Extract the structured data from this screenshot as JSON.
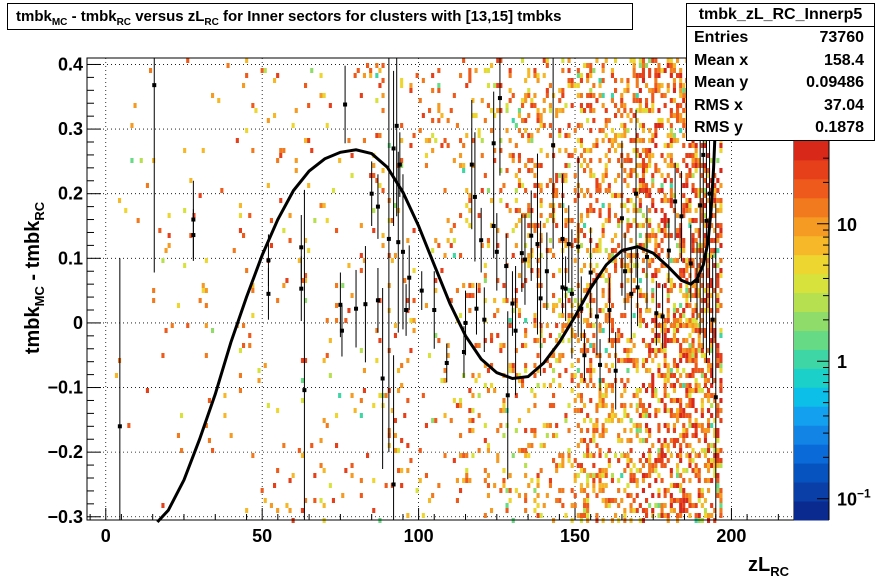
{
  "title": {
    "main": "tmbk",
    "mc_sub": "MC",
    "mid": " - tmbk",
    "rc_sub": "RC",
    "mid2": " versus zL",
    "rc_sub2": "RC",
    "tail": " for Inner sectors for clusters with [13,15] tmbks"
  },
  "stats": {
    "name": "tmbk_zL_RC_Innerp5",
    "rows": [
      {
        "label": "Entries",
        "value": "73760"
      },
      {
        "label": "Mean x",
        "value": "158.4"
      },
      {
        "label": "Mean y",
        "value": "0.09486"
      },
      {
        "label": "RMS x",
        "value": "37.04"
      },
      {
        "label": "RMS y",
        "value": "0.1878"
      }
    ]
  },
  "chart_data": {
    "type": "heatmap",
    "xlabel": {
      "base": "zL",
      "sub": "RC"
    },
    "ylabel": {
      "base": "tmbk",
      "sub1": "MC",
      "mid": " - tmbk",
      "sub2": "RC"
    },
    "xlim": [
      -6,
      220
    ],
    "ylim": [
      -0.305,
      0.41
    ],
    "x_ticks": [
      0,
      50,
      100,
      150,
      200
    ],
    "x_tick_labels": [
      "0",
      "50",
      "100",
      "150",
      "200"
    ],
    "y_ticks": [
      -0.3,
      -0.2,
      -0.1,
      0,
      0.1,
      0.2,
      0.3,
      0.4
    ],
    "y_tick_labels": [
      "−0.3",
      "−0.2",
      "−0.1",
      "0",
      "0.1",
      "0.2",
      "0.3",
      "0.4"
    ],
    "grid": true,
    "z_scale": "log",
    "z_range": [
      0.07,
      40
    ],
    "z_ticks": [
      {
        "value": 10,
        "label": "10",
        "exp": ""
      },
      {
        "value": 1,
        "label": "1",
        "exp": ""
      },
      {
        "value": 0.1,
        "label": "10",
        "exp": "−1"
      }
    ],
    "palette": [
      "#0b2a8f",
      "#0a3fa8",
      "#0653c0",
      "#0a6ad8",
      "#1184e6",
      "#12a0ef",
      "#0bbfe8",
      "#1ad0c8",
      "#3dd6a4",
      "#66da84",
      "#8fdc6a",
      "#b7e050",
      "#d8e23c",
      "#eed630",
      "#f6b828",
      "#f59a22",
      "#f27a1e",
      "#ee5a1c",
      "#e6401a",
      "#d8281a"
    ],
    "profile_points": [
      {
        "x": 4.5,
        "y": -0.16,
        "err": 0.26
      },
      {
        "x": 15.5,
        "y": 0.368,
        "err": 0.29
      },
      {
        "x": 28,
        "y": 0.16,
        "err": 0.06
      },
      {
        "x": 28,
        "y": 0.136,
        "err": 0.04
      },
      {
        "x": 52,
        "y": 0.097,
        "err": 0.04
      },
      {
        "x": 52,
        "y": 0.045,
        "err": 0.04
      },
      {
        "x": 62.5,
        "y": 0.117,
        "err": 0.05
      },
      {
        "x": 62.5,
        "y": 0.053,
        "err": 0.05
      },
      {
        "x": 63.5,
        "y": -0.104,
        "err": 0.31
      },
      {
        "x": 75,
        "y": 0.028,
        "err": 0.05
      },
      {
        "x": 75.5,
        "y": -0.012,
        "err": 0.04
      },
      {
        "x": 76.5,
        "y": 0.338,
        "err": 0.06
      },
      {
        "x": 80,
        "y": 0.022,
        "err": 0.06
      },
      {
        "x": 83,
        "y": 0.029,
        "err": 0.09
      },
      {
        "x": 85,
        "y": 0.2,
        "err": 0.05
      },
      {
        "x": 87,
        "y": 0.18,
        "err": 0.05
      },
      {
        "x": 87,
        "y": 0.035,
        "err": 0.05
      },
      {
        "x": 88.5,
        "y": -0.086,
        "err": 0.14
      },
      {
        "x": 90.5,
        "y": 0.13,
        "err": 0.33
      },
      {
        "x": 92,
        "y": 0.27,
        "err": 0.12
      },
      {
        "x": 92,
        "y": -0.25,
        "err": 0.2
      },
      {
        "x": 93,
        "y": 0.305,
        "err": 0.14
      },
      {
        "x": 93.5,
        "y": 0.125,
        "err": 0.14
      },
      {
        "x": 94,
        "y": 0.245,
        "err": 0.05
      },
      {
        "x": 95,
        "y": 0.11,
        "err": 0.12
      },
      {
        "x": 96,
        "y": 0.02,
        "err": 0.04
      },
      {
        "x": 97,
        "y": 0.07,
        "err": 0.05
      },
      {
        "x": 101,
        "y": 0.05,
        "err": 0.03
      },
      {
        "x": 105,
        "y": 0.02,
        "err": 0.06
      },
      {
        "x": 109,
        "y": -0.062,
        "err": 0.03
      },
      {
        "x": 114.5,
        "y": -0.045,
        "err": 0.04
      },
      {
        "x": 115,
        "y": 0.0,
        "err": 0.05
      },
      {
        "x": 117,
        "y": 0.245,
        "err": 0.1
      },
      {
        "x": 118,
        "y": 0.195,
        "err": 0.1
      },
      {
        "x": 118.5,
        "y": 0.022,
        "err": 0.04
      },
      {
        "x": 120,
        "y": 0.128,
        "err": 0.05
      },
      {
        "x": 121,
        "y": 0.005,
        "err": 0.05
      },
      {
        "x": 124,
        "y": 0.278,
        "err": 0.08
      },
      {
        "x": 124,
        "y": 0.15,
        "err": 0.05
      },
      {
        "x": 125,
        "y": 0.11,
        "err": 0.06
      },
      {
        "x": 126,
        "y": 0.348,
        "err": 0.12
      },
      {
        "x": 128,
        "y": 0.088,
        "err": 0.05
      },
      {
        "x": 128.5,
        "y": -0.112,
        "err": 0.13
      },
      {
        "x": 130,
        "y": 0.03,
        "err": 0.05
      },
      {
        "x": 131,
        "y": -0.012,
        "err": 0.1
      },
      {
        "x": 133,
        "y": 0.108,
        "err": 0.06
      },
      {
        "x": 134,
        "y": 0.098,
        "err": 0.07
      },
      {
        "x": 136,
        "y": 0.135,
        "err": 0.07
      },
      {
        "x": 138,
        "y": 0.122,
        "err": 0.14
      },
      {
        "x": 139,
        "y": 0.038,
        "err": 0.12
      },
      {
        "x": 141,
        "y": 0.08,
        "err": 0.06
      },
      {
        "x": 143,
        "y": 0.275,
        "err": 0.16
      },
      {
        "x": 146,
        "y": 0.13,
        "err": 0.1
      },
      {
        "x": 146,
        "y": 0.055,
        "err": 0.04
      },
      {
        "x": 147,
        "y": 0.053,
        "err": 0.05
      },
      {
        "x": 148,
        "y": 0.122,
        "err": 0.06
      },
      {
        "x": 149,
        "y": 0.045,
        "err": 0.1
      },
      {
        "x": 151,
        "y": 0.118,
        "err": 0.14
      },
      {
        "x": 152,
        "y": 0.022,
        "err": 0.05
      },
      {
        "x": 153,
        "y": -0.05,
        "err": 0.04
      },
      {
        "x": 155,
        "y": 0.078,
        "err": 0.07
      },
      {
        "x": 157,
        "y": 0.01,
        "err": 0.06
      },
      {
        "x": 158,
        "y": -0.065,
        "err": 0.04
      },
      {
        "x": 161,
        "y": 0.02,
        "err": 0.05
      },
      {
        "x": 163,
        "y": -0.074,
        "err": 0.06
      },
      {
        "x": 165,
        "y": 0.162,
        "err": 0.12
      },
      {
        "x": 166,
        "y": 0.08,
        "err": 0.06
      },
      {
        "x": 168,
        "y": 0.045,
        "err": 0.07
      },
      {
        "x": 169.5,
        "y": 0.2,
        "err": 0.13
      },
      {
        "x": 170,
        "y": 0.055,
        "err": 0.06
      },
      {
        "x": 173,
        "y": 0.102,
        "err": 0.08
      },
      {
        "x": 176,
        "y": 0.015,
        "err": 0.05
      },
      {
        "x": 178,
        "y": 0.01,
        "err": 0.05
      },
      {
        "x": 180,
        "y": 0.112,
        "err": 0.05
      },
      {
        "x": 182,
        "y": 0.188,
        "err": 0.06
      },
      {
        "x": 184,
        "y": 0.165,
        "err": 0.07
      },
      {
        "x": 187,
        "y": 0.092,
        "err": 0.06
      },
      {
        "x": 189,
        "y": 0.065,
        "err": 0.06
      },
      {
        "x": 190,
        "y": 0.182,
        "err": 0.2
      },
      {
        "x": 191,
        "y": 0.26,
        "err": 0.3
      },
      {
        "x": 192,
        "y": 0.158,
        "err": 0.22
      },
      {
        "x": 193,
        "y": 0.2,
        "err": 0.25
      },
      {
        "x": 194,
        "y": 0.005,
        "err": 0.1
      },
      {
        "x": 195,
        "y": -0.115,
        "err": 0.3
      }
    ],
    "fit_curve": [
      {
        "x": 16.5,
        "y": -0.31
      },
      {
        "x": 20,
        "y": -0.29
      },
      {
        "x": 25,
        "y": -0.243
      },
      {
        "x": 30,
        "y": -0.18
      },
      {
        "x": 35,
        "y": -0.11
      },
      {
        "x": 40,
        "y": -0.03
      },
      {
        "x": 45,
        "y": 0.04
      },
      {
        "x": 50,
        "y": 0.105
      },
      {
        "x": 55,
        "y": 0.16
      },
      {
        "x": 60,
        "y": 0.205
      },
      {
        "x": 65,
        "y": 0.235
      },
      {
        "x": 70,
        "y": 0.254
      },
      {
        "x": 75,
        "y": 0.264
      },
      {
        "x": 80,
        "y": 0.268
      },
      {
        "x": 85,
        "y": 0.262
      },
      {
        "x": 90,
        "y": 0.241
      },
      {
        "x": 95,
        "y": 0.202
      },
      {
        "x": 100,
        "y": 0.15
      },
      {
        "x": 105,
        "y": 0.09
      },
      {
        "x": 110,
        "y": 0.03
      },
      {
        "x": 115,
        "y": -0.02
      },
      {
        "x": 120,
        "y": -0.056
      },
      {
        "x": 125,
        "y": -0.077
      },
      {
        "x": 130,
        "y": -0.086
      },
      {
        "x": 135,
        "y": -0.083
      },
      {
        "x": 140,
        "y": -0.062
      },
      {
        "x": 145,
        "y": -0.03
      },
      {
        "x": 150,
        "y": 0.01
      },
      {
        "x": 155,
        "y": 0.054
      },
      {
        "x": 160,
        "y": 0.09
      },
      {
        "x": 165,
        "y": 0.112
      },
      {
        "x": 170,
        "y": 0.118
      },
      {
        "x": 175,
        "y": 0.108
      },
      {
        "x": 180,
        "y": 0.086
      },
      {
        "x": 184,
        "y": 0.066
      },
      {
        "x": 187,
        "y": 0.06
      },
      {
        "x": 189,
        "y": 0.068
      },
      {
        "x": 191,
        "y": 0.09
      },
      {
        "x": 192.5,
        "y": 0.125
      },
      {
        "x": 193.5,
        "y": 0.175
      },
      {
        "x": 194.3,
        "y": 0.24
      },
      {
        "x": 195,
        "y": 0.32
      },
      {
        "x": 195.5,
        "y": 0.41
      }
    ]
  }
}
